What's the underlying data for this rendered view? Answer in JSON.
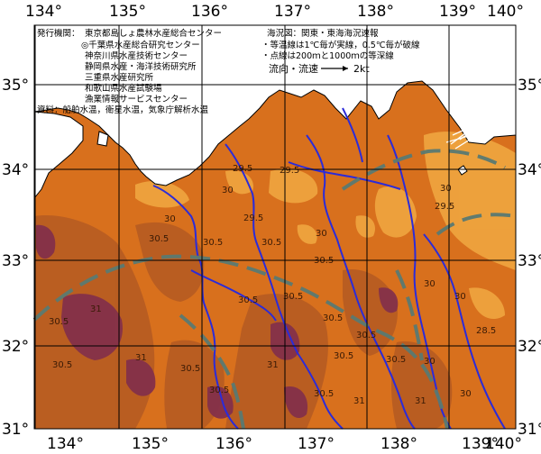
{
  "map": {
    "lon_labels": [
      "134°",
      "135°",
      "136°",
      "137°",
      "138°",
      "139°",
      "140°"
    ],
    "lat_labels": [
      "35°",
      "34°",
      "33°",
      "32°",
      "31°"
    ],
    "lon_range": [
      133.6,
      140.1
    ],
    "lat_range": [
      31.0,
      35.9
    ]
  },
  "publisher_panel": {
    "title": "発行機関：",
    "lines": [
      "東京都島しょ農林水産総合センター",
      "◎千葉県水産総合研究センター",
      "神奈川県水産技術センター",
      "静岡県水産・海洋技術研究所",
      "三重県水産研究所",
      "和歌山県水産試験場",
      "漁業情報サービスセンター"
    ],
    "source": "資料：船舶水温，衛星水温，気象庁解析水温"
  },
  "chart_info": {
    "title": "海況図：関東・東海海況速報",
    "line1": "・等温線は1℃毎が実線，0.5℃毎が破線",
    "line2": "・点線は200ｍと1000ｍの等深線",
    "legend_label": "流向・流速",
    "legend_unit": "2kt"
  },
  "isotherm_labels": [
    "29.5",
    "30",
    "30.5",
    "31",
    "28.5"
  ],
  "colors": {
    "land": "#ffffff",
    "sea_cool": "#f0a640",
    "sea_mid": "#d8701d",
    "sea_warm": "#b85d22",
    "sea_hot": "#84304a",
    "front_line": "#2b2bd9",
    "kuroshio_axis": "#5a7a72",
    "grid": "#000000"
  }
}
